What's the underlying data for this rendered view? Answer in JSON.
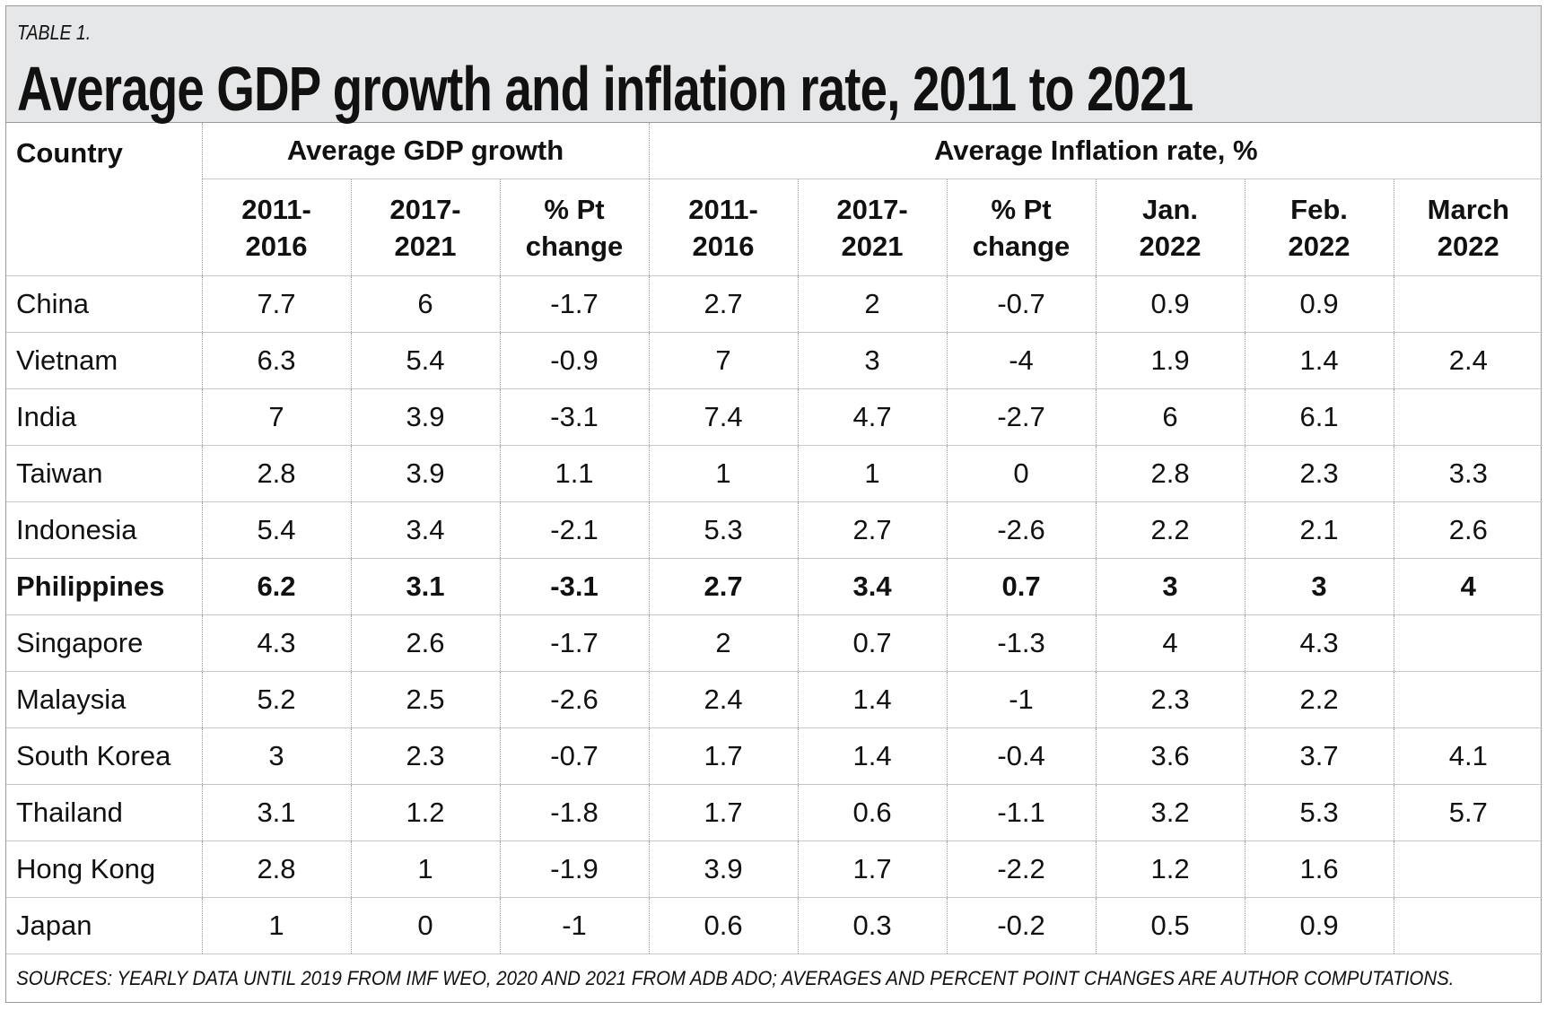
{
  "header": {
    "label": "TABLE 1.",
    "title": "Average GDP growth and inflation rate, 2011 to 2021"
  },
  "table": {
    "corner": "Country",
    "column_groups": [
      {
        "label": "Average GDP growth",
        "span": 3
      },
      {
        "label": "Average Inflation rate, %",
        "span": 6
      }
    ],
    "columns": [
      [
        "2011-",
        "2016"
      ],
      [
        "2017-",
        "2021"
      ],
      [
        "% Pt",
        "change"
      ],
      [
        "2011-",
        "2016"
      ],
      [
        "2017-",
        "2021"
      ],
      [
        "% Pt",
        "change"
      ],
      [
        "Jan.",
        "2022"
      ],
      [
        "Feb.",
        "2022"
      ],
      [
        "March",
        "2022"
      ]
    ],
    "bold_row": 5,
    "rows": [
      [
        "China",
        7.7,
        6,
        -1.7,
        2.7,
        2,
        -0.7,
        0.9,
        0.9,
        null
      ],
      [
        "Vietnam",
        6.3,
        5.4,
        -0.9,
        7,
        3,
        -4,
        1.9,
        1.4,
        2.4
      ],
      [
        "India",
        7,
        3.9,
        -3.1,
        7.4,
        4.7,
        -2.7,
        6,
        6.1,
        null
      ],
      [
        "Taiwan",
        2.8,
        3.9,
        1.1,
        1,
        1,
        0,
        2.8,
        2.3,
        3.3
      ],
      [
        "Indonesia",
        5.4,
        3.4,
        -2.1,
        5.3,
        2.7,
        -2.6,
        2.2,
        2.1,
        2.6
      ],
      [
        "Philippines",
        6.2,
        3.1,
        -3.1,
        2.7,
        3.4,
        0.7,
        3,
        3,
        4
      ],
      [
        "Singapore",
        4.3,
        2.6,
        -1.7,
        2,
        0.7,
        -1.3,
        4,
        4.3,
        null
      ],
      [
        "Malaysia",
        5.2,
        2.5,
        -2.6,
        2.4,
        1.4,
        -1,
        2.3,
        2.2,
        null
      ],
      [
        "South Korea",
        3,
        2.3,
        -0.7,
        1.7,
        1.4,
        -0.4,
        3.6,
        3.7,
        4.1
      ],
      [
        "Thailand",
        3.1,
        1.2,
        -1.8,
        1.7,
        0.6,
        -1.1,
        3.2,
        5.3,
        5.7
      ],
      [
        "Hong Kong",
        2.8,
        1,
        -1.9,
        3.9,
        1.7,
        -2.2,
        1.2,
        1.6,
        null
      ],
      [
        "Japan",
        1,
        0,
        -1,
        0.6,
        0.3,
        -0.2,
        0.5,
        0.9,
        null
      ]
    ]
  },
  "footer": "SOURCES: YEARLY DATA UNTIL 2019 FROM IMF WEO, 2020 AND 2021 FROM ADB ADO; AVERAGES AND PERCENT POINT CHANGES ARE AUTHOR COMPUTATIONS."
}
